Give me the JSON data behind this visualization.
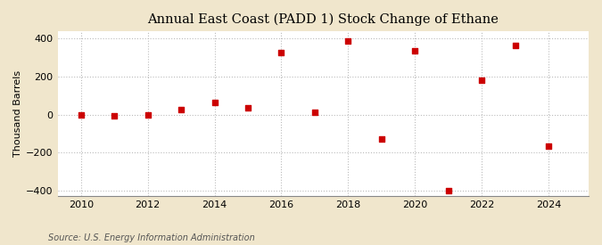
{
  "title": "Annual East Coast (PADD 1) Stock Change of Ethane",
  "ylabel": "Thousand Barrels",
  "source": "Source: U.S. Energy Information Administration",
  "figure_bg_color": "#f0e6cc",
  "plot_bg_color": "#ffffff",
  "marker_color": "#cc0000",
  "marker": "s",
  "marker_size": 4,
  "xlim": [
    2009.3,
    2025.2
  ],
  "ylim": [
    -430,
    440
  ],
  "yticks": [
    -400,
    -200,
    0,
    200,
    400
  ],
  "xticks": [
    2010,
    2012,
    2014,
    2016,
    2018,
    2020,
    2022,
    2024
  ],
  "grid_color": "#bbbbbb",
  "years": [
    2010,
    2011,
    2012,
    2013,
    2014,
    2015,
    2016,
    2017,
    2018,
    2019,
    2020,
    2021,
    2022,
    2023,
    2024
  ],
  "values": [
    0,
    -5,
    -3,
    25,
    65,
    35,
    325,
    10,
    385,
    -130,
    335,
    -400,
    180,
    365,
    -165
  ],
  "title_fontsize": 10.5,
  "ylabel_fontsize": 8,
  "tick_labelsize": 8,
  "source_fontsize": 7
}
